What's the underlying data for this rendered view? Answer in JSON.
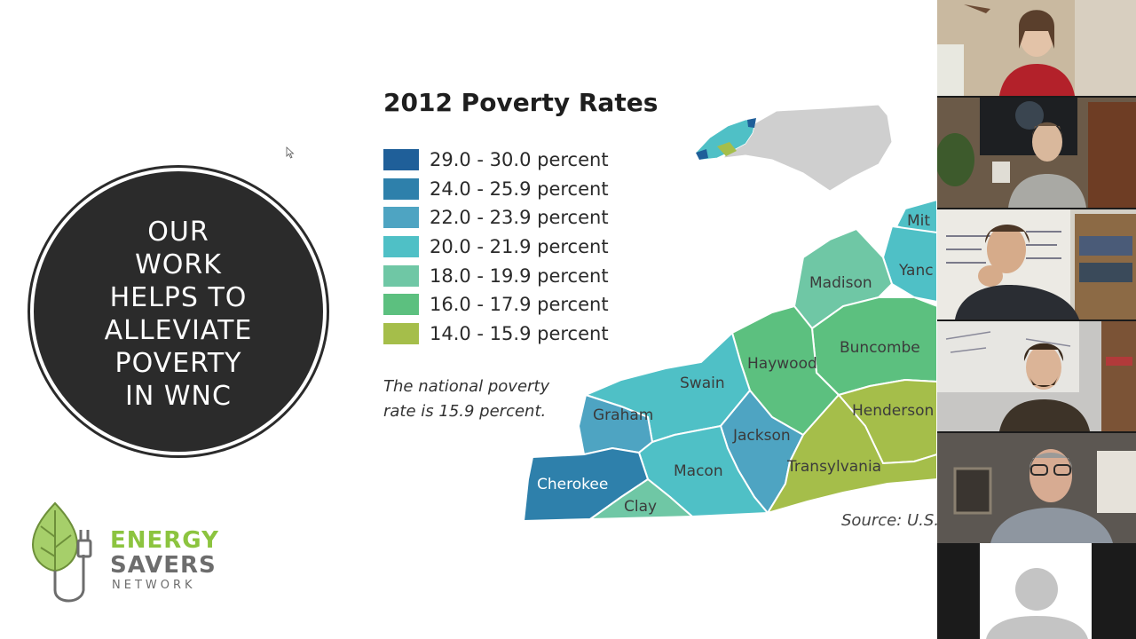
{
  "slide": {
    "circle_lines": [
      "OUR",
      "WORK",
      "HELPS TO",
      "ALLEVIATE",
      "POVERTY",
      "IN WNC"
    ],
    "logo": {
      "line1": "ENERGY",
      "line2": "SAVERS",
      "line3": "NETWORK",
      "icon": "leaf-plug-icon"
    },
    "map": {
      "title": "2012 Poverty Rates",
      "legend": [
        {
          "label": "29.0 - 30.0 percent",
          "color": "#1f5f99"
        },
        {
          "label": "24.0 - 25.9 percent",
          "color": "#2e80ab"
        },
        {
          "label": "22.0 - 23.9 percent",
          "color": "#4ea4c2"
        },
        {
          "label": "20.0 - 21.9 percent",
          "color": "#4fc0c6"
        },
        {
          "label": "18.0 - 19.9 percent",
          "color": "#6fc7a5"
        },
        {
          "label": "16.0 - 17.9 percent",
          "color": "#5cc07f"
        },
        {
          "label": "14.0 - 15.9 percent",
          "color": "#a5be4a"
        }
      ],
      "note_line1": "The national poverty",
      "note_line2": "rate is 15.9 percent.",
      "source": "Source: U.S.",
      "counties": {
        "madison": "Madison",
        "yancey": "Yanc",
        "mitchell": "Mit",
        "buncombe": "Buncombe",
        "haywood": "Haywood",
        "swain": "Swain",
        "graham": "Graham",
        "jackson": "Jackson",
        "henderson": "Henderson",
        "transylvania": "Transylvania",
        "macon": "Macon",
        "cherokee": "Cherokee",
        "clay": "Clay"
      },
      "county_colors": {
        "madison": "#6fc7a5",
        "yancey": "#4fc0c6",
        "mitchell": "#4fc0c6",
        "buncombe": "#5cc07f",
        "haywood": "#5cc07f",
        "swain": "#4fc0c6",
        "graham": "#4ea4c2",
        "jackson": "#4ea4c2",
        "henderson": "#a5be4a",
        "transylvania": "#a5be4a",
        "macon": "#4fc0c6",
        "cherokee": "#2e80ab",
        "clay": "#6fc7a5"
      }
    }
  },
  "gallery": {
    "participants": [
      {
        "id": "participant-1"
      },
      {
        "id": "participant-2"
      },
      {
        "id": "participant-3"
      },
      {
        "id": "participant-4"
      },
      {
        "id": "participant-5"
      },
      {
        "id": "participant-6",
        "avatar": "default-avatar-icon"
      }
    ]
  }
}
